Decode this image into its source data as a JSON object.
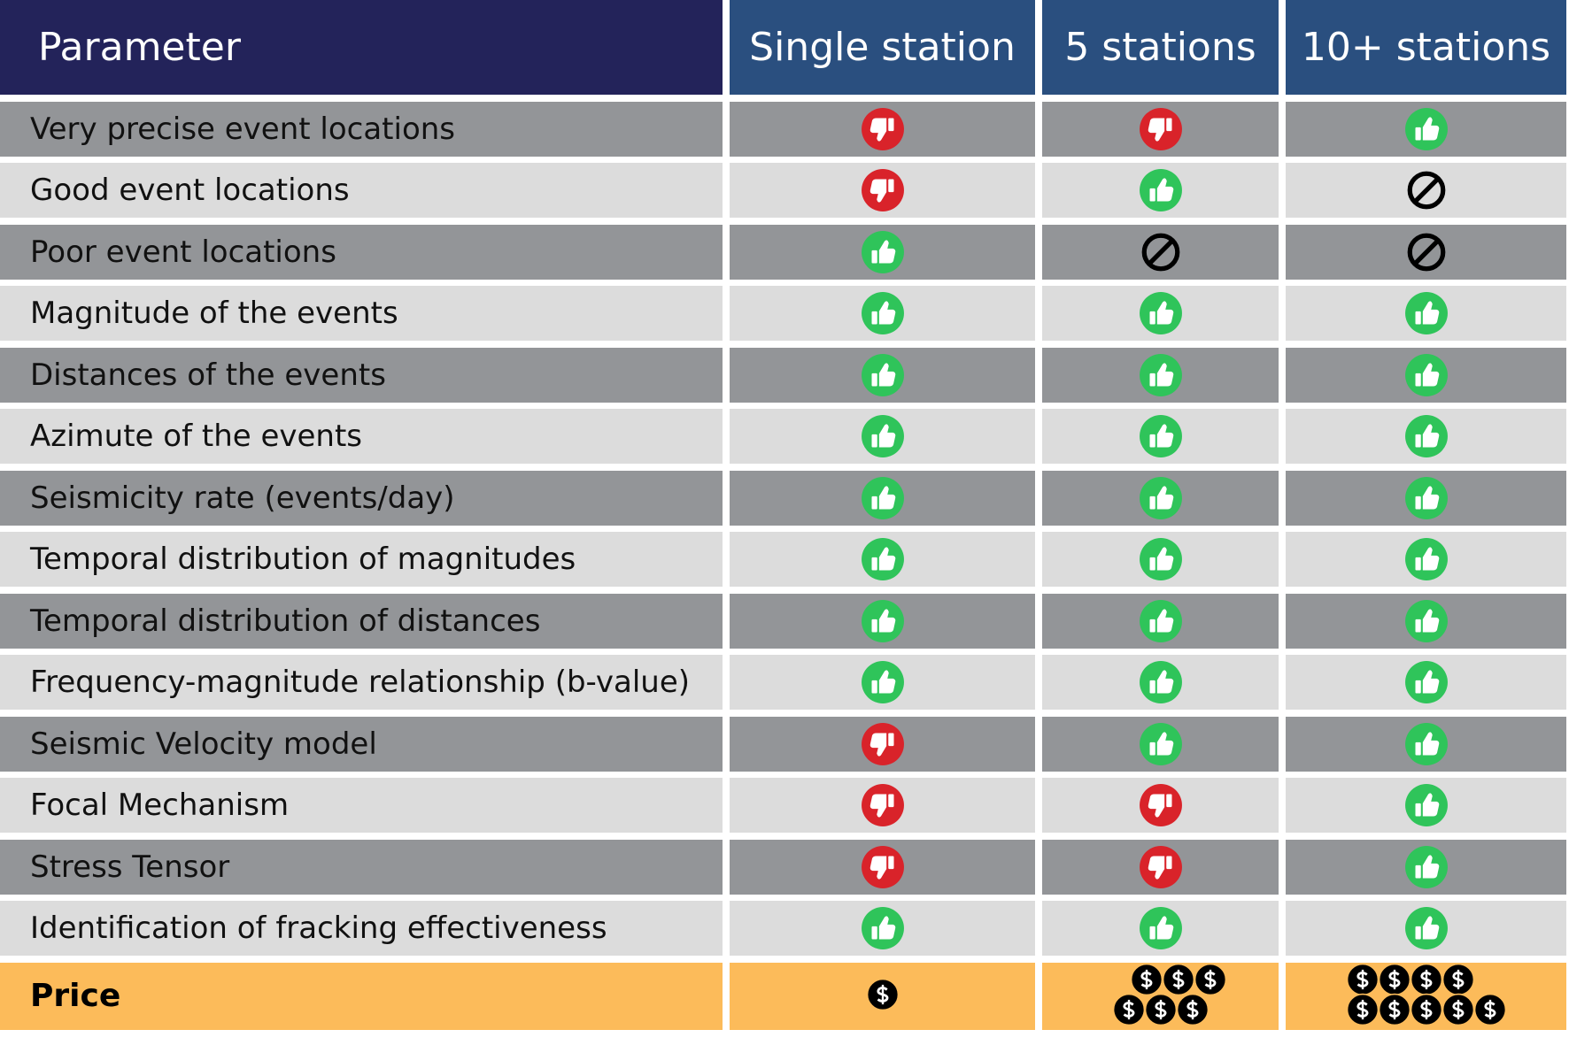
{
  "table": {
    "header": [
      "Parameter",
      "Single station",
      "5 stations",
      "10+ stations"
    ],
    "rows": [
      {
        "label": "Very precise event locations"
      },
      {
        "label": "Good event locations"
      },
      {
        "label": "Poor event locations"
      },
      {
        "label": "Magnitude of the events"
      },
      {
        "label": "Distances of the events"
      },
      {
        "label": "Azimute of the events"
      },
      {
        "label": "Seismicity rate (events/day)"
      },
      {
        "label": "Temporal distribution of magnitudes"
      },
      {
        "label": "Temporal distribution of distances"
      },
      {
        "label": "Frequency-magnitude relationship (b-value)"
      },
      {
        "label": "Seismic Velocity model"
      },
      {
        "label": "Focal Mechanism"
      },
      {
        "label": "Stress Tensor"
      },
      {
        "label": "Identification of fracking effectiveness"
      }
    ],
    "footer": {
      "label": "Price"
    }
  }
}
